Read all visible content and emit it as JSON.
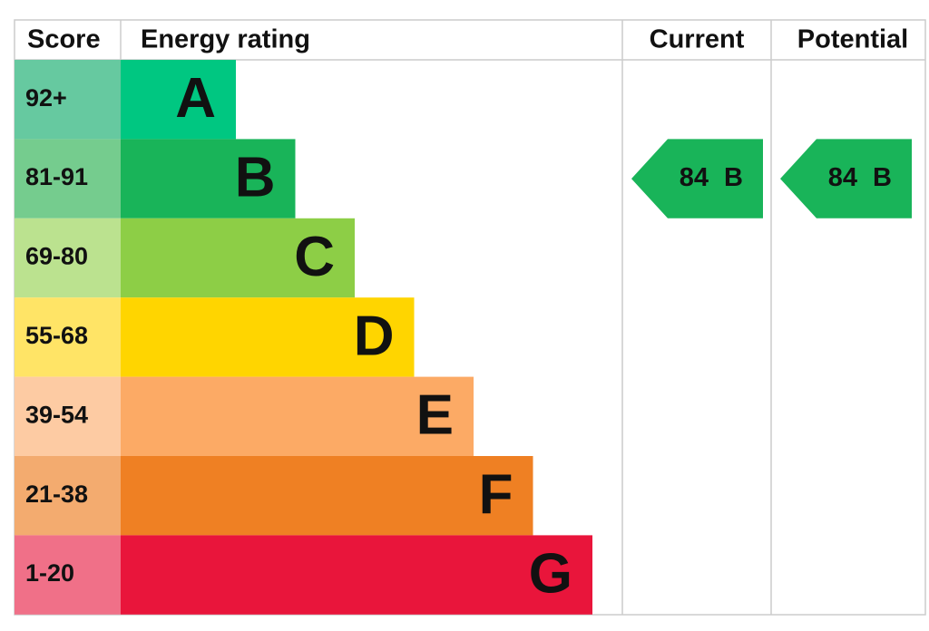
{
  "header": {
    "score": "Score",
    "energy_rating": "Energy rating",
    "current": "Current",
    "potential": "Potential"
  },
  "bands": [
    {
      "score": "92+",
      "letter": "A",
      "color": "#00c781",
      "score_color": "#66c9a0"
    },
    {
      "score": "81-91",
      "letter": "B",
      "color": "#19b459",
      "score_color": "#75cc8e"
    },
    {
      "score": "69-80",
      "letter": "C",
      "color": "#8dce46",
      "score_color": "#bbe28f"
    },
    {
      "score": "55-68",
      "letter": "D",
      "color": "#ffd500",
      "score_color": "#ffe466"
    },
    {
      "score": "39-54",
      "letter": "E",
      "color": "#fcaa65",
      "score_color": "#fdcba3"
    },
    {
      "score": "21-38",
      "letter": "F",
      "color": "#ef8023",
      "score_color": "#f3ab6f"
    },
    {
      "score": "1-20",
      "letter": "G",
      "color": "#e9153b",
      "score_color": "#f07088"
    }
  ],
  "current": {
    "value": 84,
    "letter": "B"
  },
  "potential": {
    "value": 84,
    "letter": "B"
  }
}
